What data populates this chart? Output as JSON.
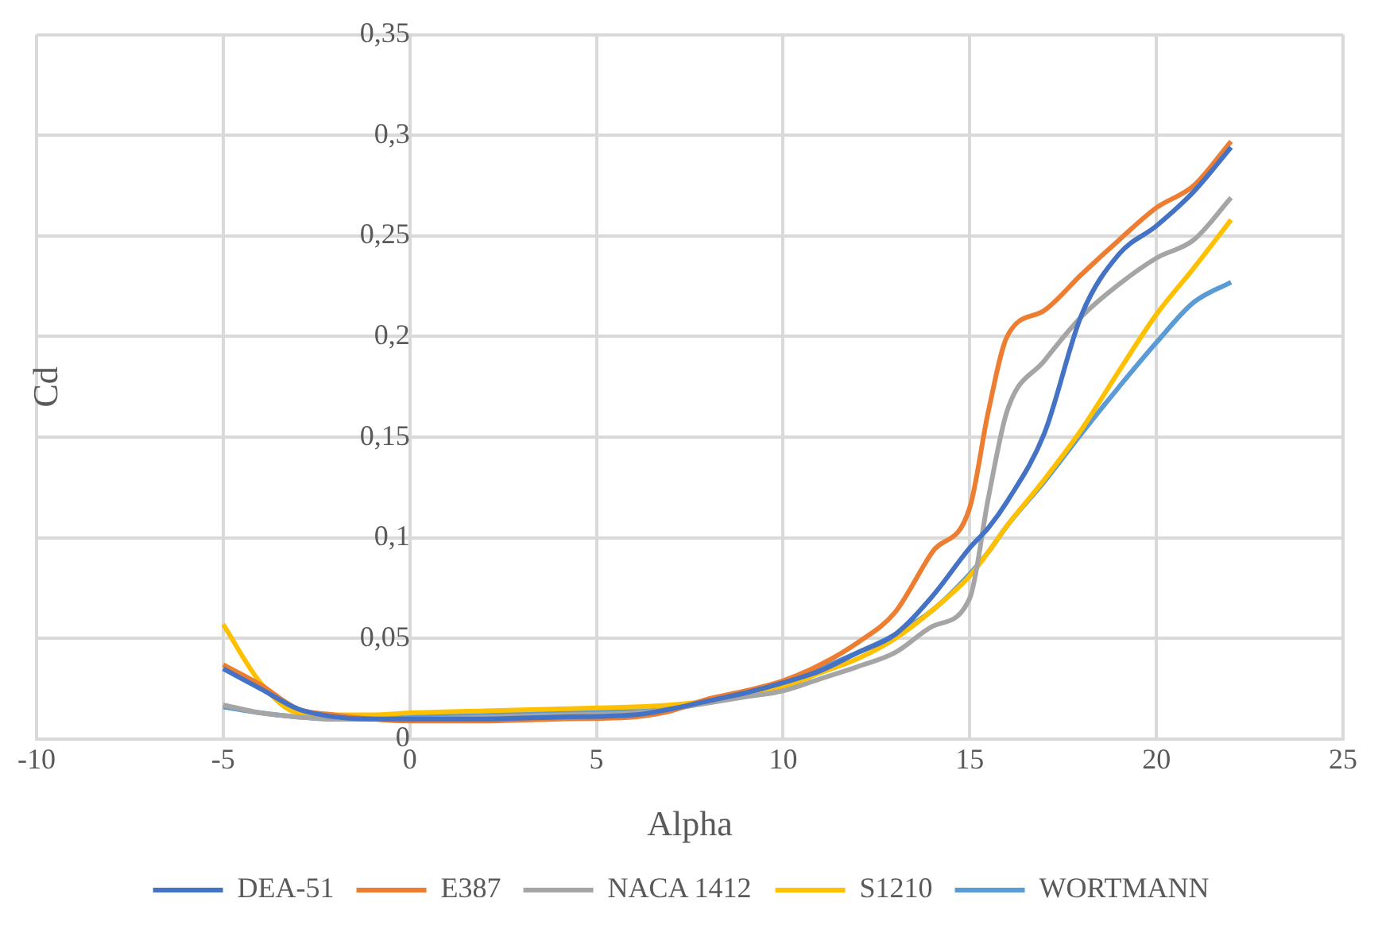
{
  "chart_data": {
    "type": "line",
    "xlabel": "Alpha",
    "ylabel": "Cd",
    "x": [
      -5,
      -4,
      -3,
      -2,
      -1,
      0,
      2,
      4,
      6,
      7,
      8,
      9,
      10,
      11,
      12,
      13,
      14,
      15,
      15.5,
      16,
      17,
      18,
      19,
      20,
      21,
      22
    ],
    "series": [
      {
        "name": "DEA-51",
        "color": "#4472c4",
        "values": [
          0.035,
          0.025,
          0.015,
          0.011,
          0.01,
          0.01,
          0.01,
          0.011,
          0.012,
          0.015,
          0.019,
          0.023,
          0.028,
          0.034,
          0.043,
          0.052,
          0.071,
          0.095,
          0.105,
          0.118,
          0.152,
          0.211,
          0.241,
          0.255,
          0.272,
          0.294
        ]
      },
      {
        "name": "E387",
        "color": "#ed7d31",
        "values": [
          0.037,
          0.027,
          0.015,
          0.012,
          0.01,
          0.009,
          0.009,
          0.01,
          0.011,
          0.014,
          0.02,
          0.024,
          0.029,
          0.037,
          0.048,
          0.063,
          0.093,
          0.115,
          0.163,
          0.2,
          0.213,
          0.231,
          0.248,
          0.264,
          0.275,
          0.297
        ]
      },
      {
        "name": "NACA 1412",
        "color": "#a5a5a5",
        "values": [
          0.017,
          0.013,
          0.011,
          0.01,
          0.01,
          0.01,
          0.011,
          0.012,
          0.013,
          0.015,
          0.018,
          0.021,
          0.024,
          0.03,
          0.036,
          0.043,
          0.056,
          0.07,
          0.12,
          0.163,
          0.188,
          0.21,
          0.226,
          0.239,
          0.248,
          0.269
        ]
      },
      {
        "name": "S1210",
        "color": "#ffc000",
        "values": [
          0.057,
          0.028,
          0.013,
          0.012,
          0.012,
          0.013,
          0.014,
          0.015,
          0.016,
          0.017,
          0.019,
          0.022,
          0.026,
          0.033,
          0.04,
          0.05,
          0.064,
          0.081,
          0.093,
          0.106,
          0.129,
          0.154,
          0.183,
          0.211,
          0.234,
          0.258
        ]
      },
      {
        "name": "WORTMANN",
        "color": "#5b9bd5",
        "values": [
          0.016,
          0.013,
          0.011,
          0.01,
          0.01,
          0.011,
          0.012,
          0.013,
          0.014,
          0.016,
          0.019,
          0.023,
          0.028,
          0.035,
          0.043,
          0.052,
          0.064,
          0.082,
          0.093,
          0.106,
          0.128,
          0.152,
          0.175,
          0.197,
          0.217,
          0.227
        ]
      }
    ],
    "xlim": [
      -10,
      25
    ],
    "xticks": [
      -10,
      -5,
      0,
      5,
      10,
      15,
      20,
      25
    ],
    "ylim": [
      0,
      0.35
    ],
    "yticks": [
      0,
      {
        "value": 0.05,
        "label": "0,05"
      },
      {
        "value": 0.1,
        "label": "0,1"
      },
      {
        "value": 0.15,
        "label": "0,15"
      },
      {
        "value": 0.2,
        "label": "0,2"
      },
      {
        "value": 0.25,
        "label": "0,25"
      },
      {
        "value": 0.3,
        "label": "0,3"
      },
      {
        "value": 0.35,
        "label": "0,35"
      }
    ],
    "grid": true,
    "legend": "bottom",
    "marker": "none",
    "line_style": "solid"
  }
}
